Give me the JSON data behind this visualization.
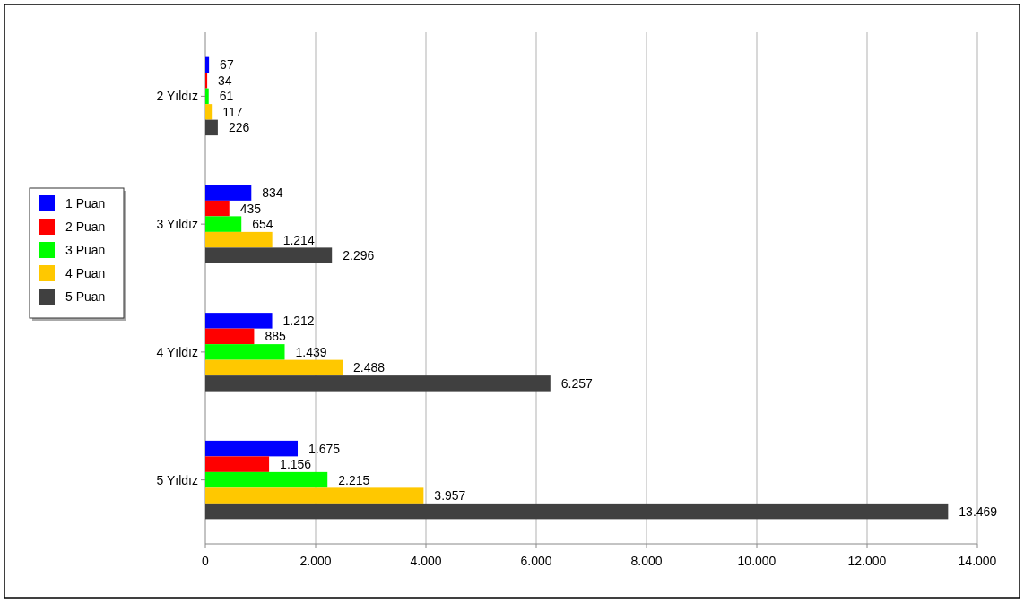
{
  "chart_data": {
    "type": "bar",
    "orientation": "horizontal",
    "categories": [
      "2 Yıldız",
      "3 Yıldız",
      "4 Yıldız",
      "5 Yıldız"
    ],
    "series": [
      {
        "name": "1 Puan",
        "color": "#0000ff",
        "values": [
          67,
          834,
          1212,
          1675
        ],
        "value_labels": [
          "67",
          "834",
          "1.212",
          "1.675"
        ]
      },
      {
        "name": "2 Puan",
        "color": "#ff0000",
        "values": [
          34,
          435,
          885,
          1156
        ],
        "value_labels": [
          "34",
          "435",
          "885",
          "1.156"
        ]
      },
      {
        "name": "3 Puan",
        "color": "#00ff00",
        "values": [
          61,
          654,
          1439,
          2215
        ],
        "value_labels": [
          "61",
          "654",
          "1.439",
          "2.215"
        ]
      },
      {
        "name": "4 Puan",
        "color": "#ffc800",
        "values": [
          117,
          1214,
          2488,
          3957
        ],
        "value_labels": [
          "117",
          "1.214",
          "2.488",
          "3.957"
        ]
      },
      {
        "name": "5 Puan",
        "color": "#404040",
        "values": [
          226,
          2296,
          6257,
          13469
        ],
        "value_labels": [
          "226",
          "2.296",
          "6.257",
          "13.469"
        ]
      }
    ],
    "xlim": [
      0,
      14000
    ],
    "xticks": [
      0,
      {
        "value": 2000,
        "label": "2.000"
      },
      {
        "value": 4000,
        "label": "4.000"
      },
      {
        "value": 6000,
        "label": "6.000"
      },
      {
        "value": 8000,
        "label": "8.000"
      },
      {
        "value": 10000,
        "label": "10.000"
      },
      {
        "value": 12000,
        "label": "12.000"
      },
      {
        "value": 14000,
        "label": "14.000"
      }
    ],
    "grid": "x",
    "legend": "left"
  }
}
